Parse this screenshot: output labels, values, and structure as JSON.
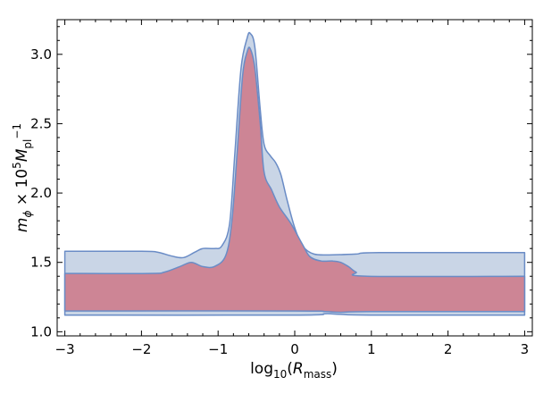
{
  "chart_data": {
    "type": "area",
    "title": "",
    "xlabel": {
      "prefix": "log",
      "sub1": "10",
      "open": "(",
      "italic": "R",
      "sub2": "mass",
      "close": ")"
    },
    "ylabel": {
      "m": "m",
      "phi": "ϕ",
      "times": " × 10",
      "sup1": "5",
      "M": "M",
      "pl": "pl",
      "sup2": "−1"
    },
    "xlim": [
      -3.1,
      3.1
    ],
    "ylim": [
      0.97,
      3.25
    ],
    "xticks": [
      -3,
      -2,
      -1,
      0,
      1,
      2,
      3
    ],
    "xtick_labels": [
      "−3",
      "−2",
      "−1",
      "0",
      "1",
      "2",
      "3"
    ],
    "yticks": [
      1.0,
      1.5,
      2.0,
      2.5,
      3.0
    ],
    "ytick_labels": [
      "1.0",
      "1.5",
      "2.0",
      "2.5",
      "3.0"
    ],
    "grid": false,
    "series": [
      {
        "color": "#c9d5e6",
        "upper": [
          [
            -3,
            1.58
          ],
          [
            -2.0,
            1.58
          ],
          [
            -1.8,
            1.575
          ],
          [
            -1.6,
            1.545
          ],
          [
            -1.45,
            1.535
          ],
          [
            -1.3,
            1.575
          ],
          [
            -1.2,
            1.6
          ],
          [
            -1.05,
            1.6
          ],
          [
            -0.95,
            1.62
          ],
          [
            -0.85,
            1.78
          ],
          [
            -0.78,
            2.3
          ],
          [
            -0.7,
            2.9
          ],
          [
            -0.62,
            3.12
          ],
          [
            -0.58,
            3.15
          ],
          [
            -0.52,
            3.05
          ],
          [
            -0.45,
            2.6
          ],
          [
            -0.4,
            2.35
          ],
          [
            -0.32,
            2.27
          ],
          [
            -0.25,
            2.22
          ],
          [
            -0.18,
            2.13
          ],
          [
            -0.1,
            1.95
          ],
          [
            0.0,
            1.75
          ],
          [
            0.1,
            1.62
          ],
          [
            0.25,
            1.56
          ],
          [
            0.5,
            1.555
          ],
          [
            0.8,
            1.56
          ],
          [
            1.1,
            1.57
          ],
          [
            3,
            1.57
          ]
        ],
        "lower": [
          [
            -3,
            1.12
          ],
          [
            0.0,
            1.12
          ],
          [
            0.4,
            1.13
          ],
          [
            0.6,
            1.125
          ],
          [
            1.0,
            1.12
          ],
          [
            3,
            1.12
          ]
        ]
      },
      {
        "color": "#cd8595",
        "upper": [
          [
            -3,
            1.42
          ],
          [
            -1.9,
            1.42
          ],
          [
            -1.7,
            1.43
          ],
          [
            -1.5,
            1.47
          ],
          [
            -1.35,
            1.5
          ],
          [
            -1.2,
            1.47
          ],
          [
            -1.05,
            1.47
          ],
          [
            -0.9,
            1.55
          ],
          [
            -0.82,
            1.8
          ],
          [
            -0.75,
            2.3
          ],
          [
            -0.68,
            2.85
          ],
          [
            -0.62,
            3.02
          ],
          [
            -0.58,
            3.04
          ],
          [
            -0.52,
            2.9
          ],
          [
            -0.45,
            2.5
          ],
          [
            -0.4,
            2.15
          ],
          [
            -0.3,
            2.02
          ],
          [
            -0.2,
            1.9
          ],
          [
            -0.05,
            1.78
          ],
          [
            0.1,
            1.63
          ],
          [
            0.2,
            1.54
          ],
          [
            0.35,
            1.51
          ],
          [
            0.5,
            1.51
          ],
          [
            0.6,
            1.5
          ],
          [
            0.7,
            1.47
          ],
          [
            0.8,
            1.43
          ],
          [
            0.95,
            1.4
          ],
          [
            3,
            1.4
          ]
        ],
        "lower": [
          [
            -3,
            1.15
          ],
          [
            0.0,
            1.15
          ],
          [
            0.4,
            1.145
          ],
          [
            0.6,
            1.14
          ],
          [
            1.0,
            1.145
          ],
          [
            3,
            1.145
          ]
        ]
      }
    ]
  }
}
